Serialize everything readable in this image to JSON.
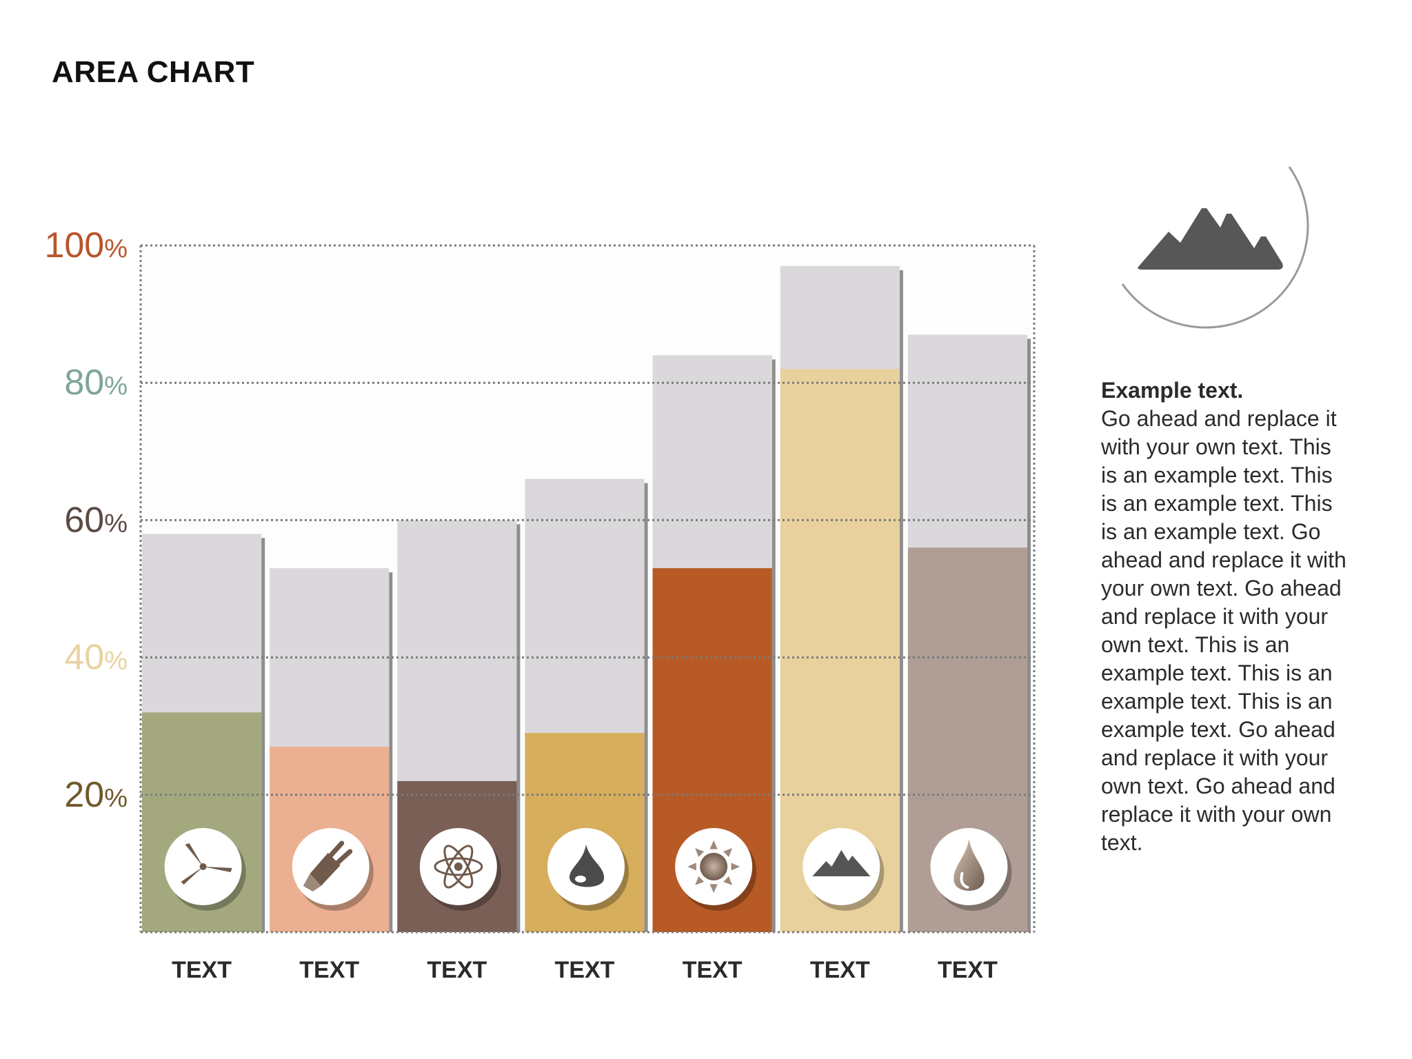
{
  "title": "AREA CHART",
  "side_text": {
    "heading": "Example text.",
    "body": "Go ahead and replace it with your own text. This is an example text. This is an example text. This is an example text. Go ahead and replace it with your own text. Go ahead and replace it with your own text. This is an example text. This is an example text. This is an example text. Go ahead and replace it with your own text. Go ahead and replace it with your own text."
  },
  "side_icon": "mountain-icon",
  "chart_data": {
    "type": "bar",
    "title": "",
    "xlabel": "",
    "ylabel": "",
    "ylim": [
      0,
      100
    ],
    "y_ticks": [
      {
        "label": "100%",
        "value": 100,
        "color": "#b9552a"
      },
      {
        "label": "80%",
        "value": 80,
        "color": "#7fa597"
      },
      {
        "label": "60%",
        "value": 60,
        "color": "#5c4a44"
      },
      {
        "label": "40%",
        "value": 40,
        "color": "#e8d3a0"
      },
      {
        "label": "20%",
        "value": 20,
        "color": "#6e5a2a"
      }
    ],
    "grid": true,
    "categories": [
      "TEXT",
      "TEXT",
      "TEXT",
      "TEXT",
      "TEXT",
      "TEXT",
      "TEXT"
    ],
    "series": [
      {
        "values": [
          32,
          27,
          22,
          29,
          53,
          82,
          56
        ]
      },
      {
        "values": [
          58,
          53,
          60,
          66,
          84,
          97,
          87
        ]
      }
    ],
    "colors": [
      "#a4a87e",
      "#eab091",
      "#7a5f56",
      "#d6ae5c",
      "#b85a25",
      "#e9d19d",
      "#b09e96"
    ],
    "background_color": "#dbd8dc",
    "icons": [
      "wind-turbine-icon",
      "plug-icon",
      "atom-icon",
      "oil-drop-icon",
      "sun-icon",
      "mountain-icon",
      "water-drop-icon"
    ]
  }
}
